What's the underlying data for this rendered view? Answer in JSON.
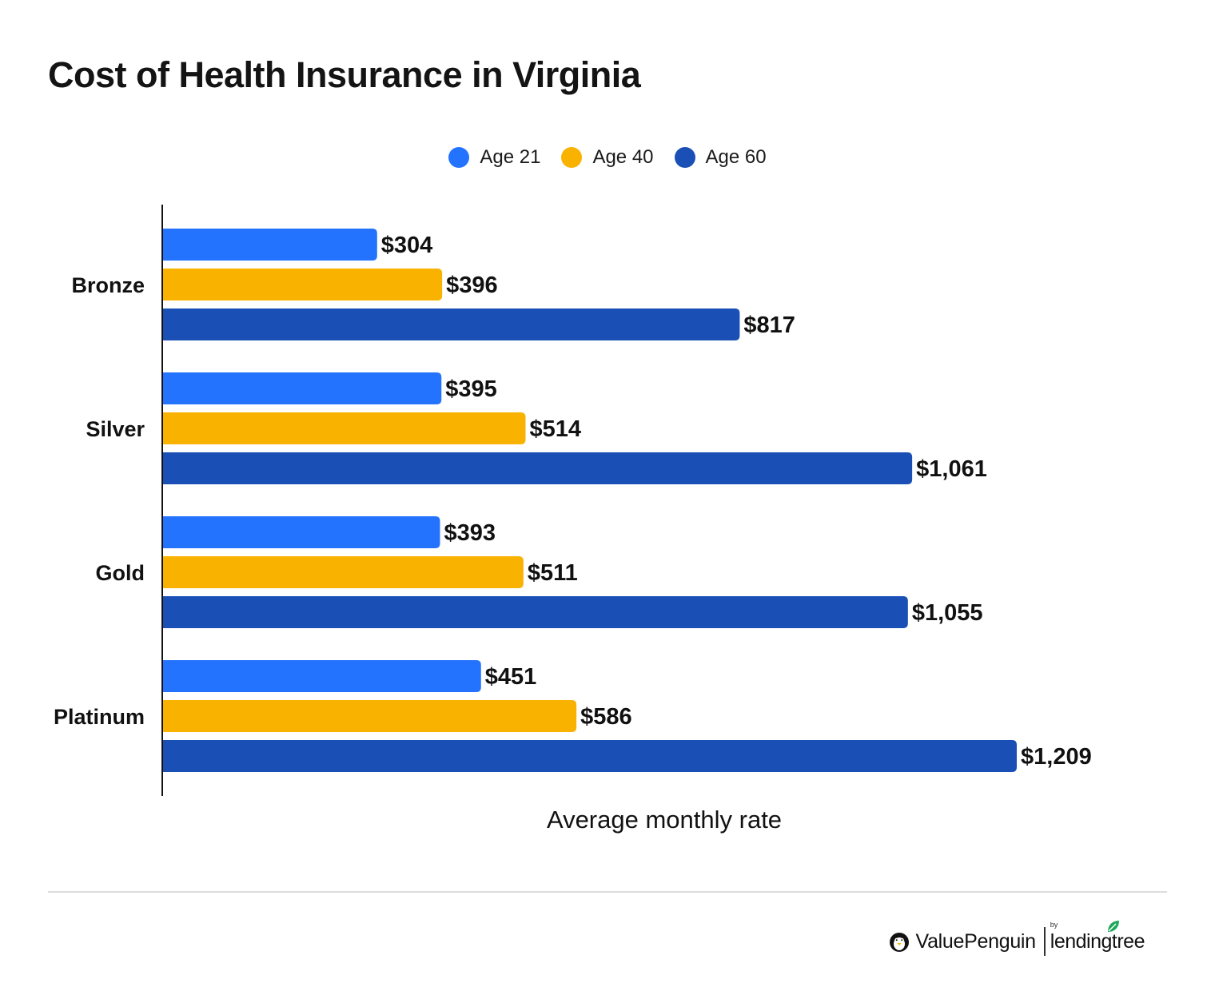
{
  "chart_data": {
    "type": "bar",
    "orientation": "horizontal",
    "title": "Cost of Health Insurance in Virginia",
    "xlabel": "Average monthly rate",
    "ylabel": "",
    "categories": [
      "Bronze",
      "Silver",
      "Gold",
      "Platinum"
    ],
    "series": [
      {
        "name": "Age 21",
        "color": "#2473FF",
        "values": [
          304,
          395,
          393,
          451
        ],
        "labels": [
          "$304",
          "$395",
          "$393",
          "$451"
        ]
      },
      {
        "name": "Age 40",
        "color": "#F9B200",
        "values": [
          396,
          514,
          511,
          586
        ],
        "labels": [
          "$396",
          "$514",
          "$511",
          "$586"
        ]
      },
      {
        "name": "Age 60",
        "color": "#1A50B5",
        "values": [
          817,
          1061,
          1055,
          1209
        ],
        "labels": [
          "$817",
          "$1,061",
          "$1,055",
          "$1,209"
        ]
      }
    ],
    "xlim": [
      0,
      1209
    ],
    "grid": false,
    "legend": "top-center"
  },
  "branding": {
    "logo_text": "ValuePenguin",
    "by_text": "by",
    "partner_text": "lendingtree"
  }
}
